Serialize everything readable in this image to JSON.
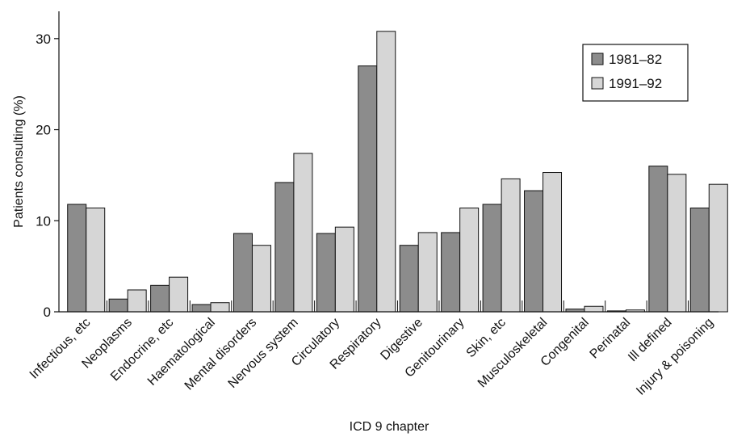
{
  "chart_data": {
    "type": "bar",
    "title": "",
    "xlabel": "ICD 9 chapter",
    "ylabel": "Patients consulting (%)",
    "ylim": [
      0,
      33
    ],
    "yticks": [
      0,
      10,
      20,
      30
    ],
    "grid": false,
    "legend_position": "top-right",
    "categories": [
      "Infectious, etc",
      "Neoplasms",
      "Endocrine, etc",
      "Haematological",
      "Mental disorders",
      "Nervous system",
      "Circulatory",
      "Respiratory",
      "Digestive",
      "Genitourinary",
      "Skin, etc",
      "Musculoskeletal",
      "Congenital",
      "Perinatal",
      "Ill defined",
      "Injury & poisoning"
    ],
    "series": [
      {
        "name": "1981–82",
        "color": "#8c8c8c",
        "values": [
          11.8,
          1.4,
          2.9,
          0.8,
          8.6,
          14.2,
          8.6,
          27.0,
          7.3,
          8.7,
          11.8,
          13.3,
          0.3,
          0.1,
          16.0,
          11.4
        ]
      },
      {
        "name": "1991–92",
        "color": "#d6d6d6",
        "values": [
          11.4,
          2.4,
          3.8,
          1.0,
          7.3,
          17.4,
          9.3,
          30.8,
          8.7,
          11.4,
          14.6,
          15.3,
          0.6,
          0.2,
          15.1,
          14.0
        ]
      }
    ]
  }
}
